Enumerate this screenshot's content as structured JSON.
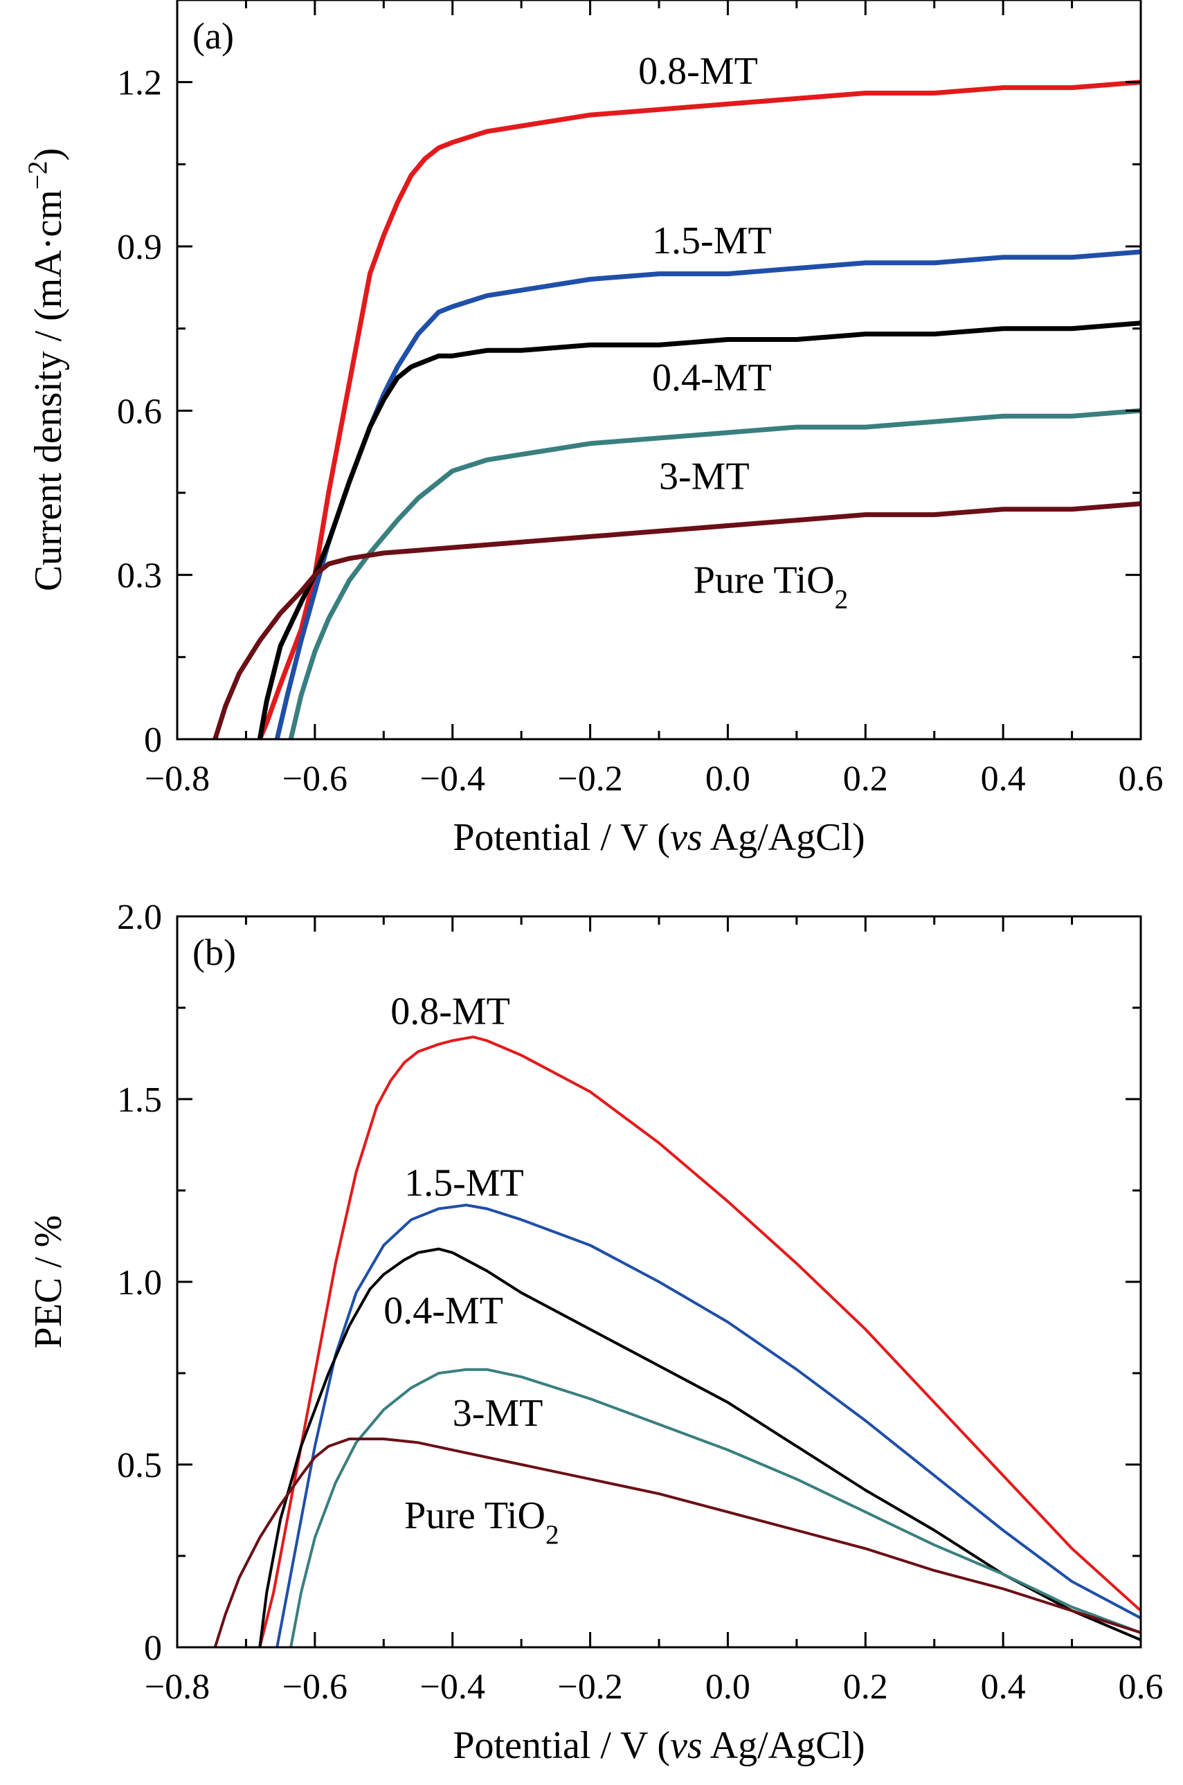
{
  "chart_data": [
    {
      "panel_label": "(a)",
      "type": "line",
      "xlabel": "Potential / V (vs Ag/AgCl)",
      "ylabel": "Current density / (mA·cm⁻²)",
      "xlim": [
        -0.8,
        0.6
      ],
      "ylim": [
        0,
        1.35
      ],
      "xticks": [
        -0.8,
        -0.6,
        -0.4,
        -0.2,
        0.0,
        0.2,
        0.4,
        0.6
      ],
      "xtick_labels": [
        "−0.8",
        "−0.6",
        "−0.4",
        "−0.2",
        "0.0",
        "0.2",
        "0.4",
        "0.6"
      ],
      "yticks": [
        0,
        0.3,
        0.6,
        0.9,
        1.2
      ],
      "ytick_labels": [
        "0",
        "0.3",
        "0.6",
        "0.9",
        "1.2"
      ],
      "grid": false,
      "series": [
        {
          "name": "0.8-MT",
          "color": "#e31a1c",
          "label_at": [
            -0.13,
            1.22
          ],
          "x": [
            -0.68,
            -0.67,
            -0.65,
            -0.62,
            -0.6,
            -0.58,
            -0.55,
            -0.52,
            -0.5,
            -0.48,
            -0.46,
            -0.44,
            -0.42,
            -0.4,
            -0.35,
            -0.3,
            -0.2,
            -0.1,
            0.0,
            0.1,
            0.2,
            0.3,
            0.4,
            0.5,
            0.6
          ],
          "y": [
            0.0,
            0.03,
            0.1,
            0.2,
            0.3,
            0.45,
            0.65,
            0.85,
            0.92,
            0.98,
            1.03,
            1.06,
            1.08,
            1.09,
            1.11,
            1.12,
            1.14,
            1.15,
            1.16,
            1.17,
            1.18,
            1.18,
            1.19,
            1.19,
            1.2
          ]
        },
        {
          "name": "1.5-MT",
          "color": "#1f4fa8",
          "label_at": [
            -0.11,
            0.91
          ],
          "x": [
            -0.655,
            -0.64,
            -0.62,
            -0.6,
            -0.58,
            -0.55,
            -0.52,
            -0.5,
            -0.48,
            -0.45,
            -0.42,
            -0.4,
            -0.35,
            -0.3,
            -0.2,
            -0.1,
            0.0,
            0.1,
            0.2,
            0.3,
            0.4,
            0.5,
            0.6
          ],
          "y": [
            0.0,
            0.08,
            0.18,
            0.27,
            0.36,
            0.47,
            0.57,
            0.63,
            0.68,
            0.74,
            0.78,
            0.79,
            0.81,
            0.82,
            0.84,
            0.85,
            0.85,
            0.86,
            0.87,
            0.87,
            0.88,
            0.88,
            0.89
          ]
        },
        {
          "name": "0.4-MT",
          "color": "#000000",
          "label_at": [
            -0.11,
            0.66
          ],
          "x": [
            -0.68,
            -0.67,
            -0.65,
            -0.62,
            -0.6,
            -0.58,
            -0.55,
            -0.52,
            -0.5,
            -0.48,
            -0.46,
            -0.44,
            -0.42,
            -0.4,
            -0.35,
            -0.3,
            -0.2,
            -0.1,
            0.0,
            0.1,
            0.2,
            0.3,
            0.4,
            0.5,
            0.6
          ],
          "y": [
            0.0,
            0.07,
            0.17,
            0.25,
            0.3,
            0.36,
            0.47,
            0.57,
            0.62,
            0.66,
            0.68,
            0.69,
            0.7,
            0.7,
            0.71,
            0.71,
            0.72,
            0.72,
            0.73,
            0.73,
            0.74,
            0.74,
            0.75,
            0.75,
            0.76
          ]
        },
        {
          "name": "3-MT",
          "color": "#3a7f80",
          "label_at": [
            -0.1,
            0.48
          ],
          "x": [
            -0.635,
            -0.62,
            -0.6,
            -0.58,
            -0.55,
            -0.52,
            -0.5,
            -0.48,
            -0.45,
            -0.42,
            -0.4,
            -0.35,
            -0.3,
            -0.2,
            -0.1,
            0.0,
            0.1,
            0.2,
            0.3,
            0.4,
            0.5,
            0.6
          ],
          "y": [
            0.0,
            0.08,
            0.16,
            0.22,
            0.29,
            0.34,
            0.37,
            0.4,
            0.44,
            0.47,
            0.49,
            0.51,
            0.52,
            0.54,
            0.55,
            0.56,
            0.57,
            0.57,
            0.58,
            0.59,
            0.59,
            0.6
          ]
        },
        {
          "name": "Pure TiO₂",
          "color": "#6b0f16",
          "label_at": [
            -0.05,
            0.29
          ],
          "x": [
            -0.745,
            -0.73,
            -0.71,
            -0.68,
            -0.65,
            -0.62,
            -0.6,
            -0.58,
            -0.55,
            -0.5,
            -0.45,
            -0.4,
            -0.3,
            -0.2,
            -0.1,
            0.0,
            0.1,
            0.2,
            0.3,
            0.4,
            0.5,
            0.6
          ],
          "y": [
            0.0,
            0.06,
            0.12,
            0.18,
            0.23,
            0.27,
            0.3,
            0.32,
            0.33,
            0.34,
            0.345,
            0.35,
            0.36,
            0.37,
            0.38,
            0.39,
            0.4,
            0.41,
            0.41,
            0.42,
            0.42,
            0.43
          ]
        }
      ]
    },
    {
      "panel_label": "(b)",
      "type": "line",
      "xlabel": "Potential / V (vs Ag/AgCl)",
      "ylabel": "PEC / %",
      "xlim": [
        -0.8,
        0.6
      ],
      "ylim": [
        0,
        2.0
      ],
      "xticks": [
        -0.8,
        -0.6,
        -0.4,
        -0.2,
        0.0,
        0.2,
        0.4,
        0.6
      ],
      "xtick_labels": [
        "−0.8",
        "−0.6",
        "−0.4",
        "−0.2",
        "0.0",
        "0.2",
        "0.4",
        "0.6"
      ],
      "yticks": [
        0,
        0.5,
        1.0,
        1.5,
        2.0
      ],
      "ytick_labels": [
        "0",
        "0.5",
        "1.0",
        "1.5",
        "2.0"
      ],
      "grid": false,
      "series": [
        {
          "name": "0.8-MT",
          "color": "#e31a1c",
          "label_at": [
            -0.49,
            1.74
          ],
          "x": [
            -0.68,
            -0.66,
            -0.63,
            -0.6,
            -0.57,
            -0.54,
            -0.51,
            -0.49,
            -0.47,
            -0.45,
            -0.42,
            -0.4,
            -0.37,
            -0.35,
            -0.3,
            -0.2,
            -0.1,
            0.0,
            0.1,
            0.2,
            0.3,
            0.4,
            0.5,
            0.6
          ],
          "y": [
            0.0,
            0.15,
            0.45,
            0.75,
            1.05,
            1.3,
            1.48,
            1.55,
            1.6,
            1.63,
            1.65,
            1.66,
            1.67,
            1.66,
            1.62,
            1.52,
            1.38,
            1.22,
            1.05,
            0.87,
            0.67,
            0.47,
            0.27,
            0.1
          ]
        },
        {
          "name": "1.5-MT",
          "color": "#1f4fa8",
          "label_at": [
            -0.47,
            1.27
          ],
          "x": [
            -0.655,
            -0.64,
            -0.62,
            -0.6,
            -0.57,
            -0.54,
            -0.5,
            -0.46,
            -0.42,
            -0.38,
            -0.35,
            -0.3,
            -0.2,
            -0.1,
            0.0,
            0.1,
            0.2,
            0.3,
            0.4,
            0.5,
            0.6
          ],
          "y": [
            0.0,
            0.15,
            0.35,
            0.55,
            0.8,
            0.97,
            1.1,
            1.17,
            1.2,
            1.21,
            1.2,
            1.17,
            1.1,
            1.0,
            0.89,
            0.76,
            0.62,
            0.47,
            0.32,
            0.18,
            0.08
          ]
        },
        {
          "name": "0.4-MT",
          "color": "#000000",
          "label_at": [
            -0.5,
            0.92
          ],
          "x": [
            -0.68,
            -0.67,
            -0.65,
            -0.62,
            -0.6,
            -0.58,
            -0.55,
            -0.52,
            -0.5,
            -0.47,
            -0.45,
            -0.42,
            -0.4,
            -0.35,
            -0.3,
            -0.2,
            -0.1,
            0.0,
            0.1,
            0.2,
            0.3,
            0.4,
            0.5,
            0.6
          ],
          "y": [
            0.0,
            0.15,
            0.35,
            0.55,
            0.65,
            0.75,
            0.88,
            0.98,
            1.02,
            1.06,
            1.08,
            1.09,
            1.08,
            1.03,
            0.97,
            0.87,
            0.77,
            0.67,
            0.55,
            0.43,
            0.32,
            0.2,
            0.1,
            0.02
          ]
        },
        {
          "name": "3-MT",
          "color": "#3a7f80",
          "label_at": [
            -0.4,
            0.64
          ],
          "x": [
            -0.635,
            -0.62,
            -0.6,
            -0.57,
            -0.54,
            -0.5,
            -0.46,
            -0.42,
            -0.38,
            -0.35,
            -0.3,
            -0.2,
            -0.1,
            0.0,
            0.1,
            0.2,
            0.3,
            0.4,
            0.5,
            0.6
          ],
          "y": [
            0.0,
            0.15,
            0.3,
            0.45,
            0.56,
            0.65,
            0.71,
            0.75,
            0.76,
            0.76,
            0.74,
            0.68,
            0.61,
            0.54,
            0.46,
            0.37,
            0.28,
            0.2,
            0.11,
            0.04
          ]
        },
        {
          "name": "Pure TiO₂",
          "color": "#6b0f16",
          "label_at": [
            -0.47,
            0.36
          ],
          "x": [
            -0.745,
            -0.73,
            -0.71,
            -0.68,
            -0.65,
            -0.62,
            -0.6,
            -0.58,
            -0.55,
            -0.5,
            -0.45,
            -0.4,
            -0.3,
            -0.2,
            -0.1,
            0.0,
            0.1,
            0.2,
            0.3,
            0.4,
            0.5,
            0.6
          ],
          "y": [
            0.0,
            0.09,
            0.19,
            0.3,
            0.39,
            0.47,
            0.52,
            0.55,
            0.57,
            0.57,
            0.56,
            0.54,
            0.5,
            0.46,
            0.42,
            0.37,
            0.32,
            0.27,
            0.21,
            0.16,
            0.1,
            0.04
          ]
        }
      ]
    }
  ]
}
